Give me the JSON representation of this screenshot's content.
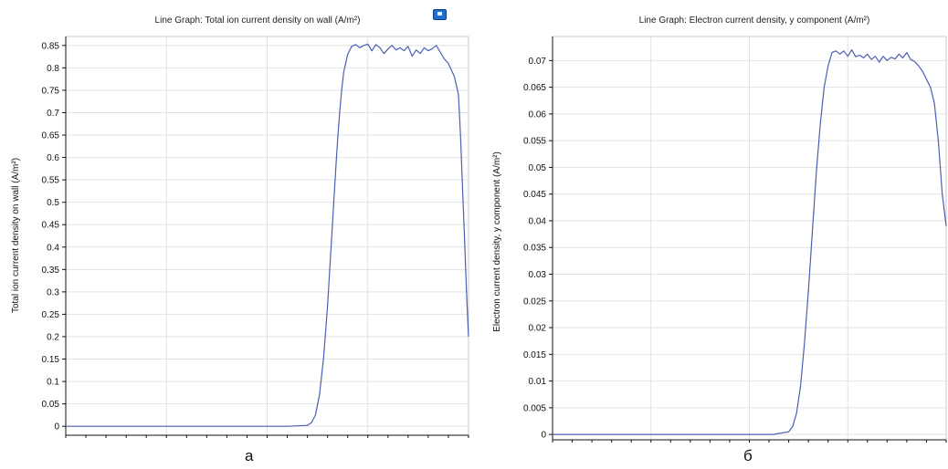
{
  "colors": {
    "line": "#4a5fb4",
    "grid": "#e2e2e2",
    "frame": "#c8c8c8",
    "axis": "#111111"
  },
  "icons": {
    "export": "export-image-icon"
  },
  "captions": {
    "a": "а",
    "b": "б"
  },
  "chart_data": [
    {
      "type": "line",
      "title": "Line Graph: Total ion current density on wall (A/m²)",
      "ylabel": "Total ion current density on wall (A/m²)",
      "xlabel": "",
      "ylim": [
        -0.02,
        0.87
      ],
      "xlim": [
        0,
        1
      ],
      "yticks": [
        0,
        0.05,
        0.1,
        0.15,
        0.2,
        0.25,
        0.3,
        0.35,
        0.4,
        0.45,
        0.5,
        0.55,
        0.6,
        0.65,
        0.7,
        0.75,
        0.8,
        0.85
      ],
      "ytick_labels": [
        "0",
        "0.05",
        "0.1",
        "0.15",
        "0.2",
        "0.25",
        "0.3",
        "0.35",
        "0.4",
        "0.45",
        "0.5",
        "0.55",
        "0.6",
        "0.65",
        "0.7",
        "0.75",
        "0.8",
        "0.85"
      ],
      "xgrid": [
        0.25,
        0.5,
        0.75
      ],
      "grid": true,
      "series": [
        {
          "x": [
            0,
            0.1,
            0.2,
            0.3,
            0.4,
            0.55,
            0.6,
            0.61,
            0.62,
            0.63,
            0.64,
            0.65,
            0.66,
            0.67,
            0.675,
            0.68,
            0.685,
            0.69,
            0.7,
            0.71,
            0.72,
            0.73,
            0.74,
            0.75,
            0.76,
            0.77,
            0.78,
            0.79,
            0.8,
            0.81,
            0.82,
            0.83,
            0.84,
            0.85,
            0.86,
            0.87,
            0.88,
            0.89,
            0.9,
            0.91,
            0.92,
            0.93,
            0.94,
            0.95,
            0.96,
            0.965,
            0.97,
            0.975,
            0.98,
            0.99,
            0.995,
            1.0
          ],
          "y": [
            0,
            0,
            0,
            0,
            0,
            0,
            0.002,
            0.008,
            0.025,
            0.07,
            0.15,
            0.27,
            0.42,
            0.57,
            0.64,
            0.7,
            0.75,
            0.79,
            0.83,
            0.848,
            0.852,
            0.845,
            0.85,
            0.853,
            0.838,
            0.852,
            0.845,
            0.832,
            0.842,
            0.85,
            0.84,
            0.845,
            0.838,
            0.848,
            0.826,
            0.84,
            0.832,
            0.845,
            0.838,
            0.843,
            0.85,
            0.835,
            0.82,
            0.81,
            0.79,
            0.78,
            0.76,
            0.74,
            0.65,
            0.42,
            0.3,
            0.2
          ]
        }
      ]
    },
    {
      "type": "line",
      "title": "Line Graph: Electron current density, y component (A/m²)",
      "ylabel": "Electron current density, y component (A/m²)",
      "xlabel": "",
      "ylim": [
        -0.001,
        0.0745
      ],
      "xlim": [
        0,
        1
      ],
      "yticks": [
        0,
        0.005,
        0.01,
        0.015,
        0.02,
        0.025,
        0.03,
        0.035,
        0.04,
        0.045,
        0.05,
        0.055,
        0.06,
        0.065,
        0.07
      ],
      "ytick_labels": [
        "0",
        "0.005",
        "0.01",
        "0.015",
        "0.02",
        "0.025",
        "0.03",
        "0.035",
        "0.04",
        "0.045",
        "0.05",
        "0.055",
        "0.06",
        "0.065",
        "0.07"
      ],
      "xgrid": [
        0.25,
        0.5,
        0.75
      ],
      "grid": true,
      "series": [
        {
          "x": [
            0,
            0.1,
            0.2,
            0.3,
            0.4,
            0.5,
            0.56,
            0.6,
            0.61,
            0.62,
            0.63,
            0.64,
            0.65,
            0.66,
            0.67,
            0.68,
            0.69,
            0.7,
            0.71,
            0.72,
            0.73,
            0.74,
            0.75,
            0.76,
            0.77,
            0.78,
            0.79,
            0.8,
            0.81,
            0.82,
            0.83,
            0.84,
            0.85,
            0.86,
            0.87,
            0.88,
            0.89,
            0.9,
            0.91,
            0.92,
            0.93,
            0.94,
            0.95,
            0.96,
            0.97,
            0.98,
            0.99,
            1.0
          ],
          "y": [
            0,
            0,
            0,
            0,
            0,
            0,
            0,
            0.0005,
            0.0015,
            0.004,
            0.009,
            0.017,
            0.027,
            0.038,
            0.049,
            0.058,
            0.065,
            0.069,
            0.0715,
            0.0718,
            0.0712,
            0.0718,
            0.0708,
            0.072,
            0.0707,
            0.071,
            0.0705,
            0.0712,
            0.0702,
            0.0708,
            0.0697,
            0.0708,
            0.07,
            0.0706,
            0.0703,
            0.0712,
            0.0705,
            0.0715,
            0.0702,
            0.0698,
            0.069,
            0.068,
            0.0665,
            0.065,
            0.062,
            0.055,
            0.045,
            0.039
          ]
        }
      ]
    }
  ]
}
